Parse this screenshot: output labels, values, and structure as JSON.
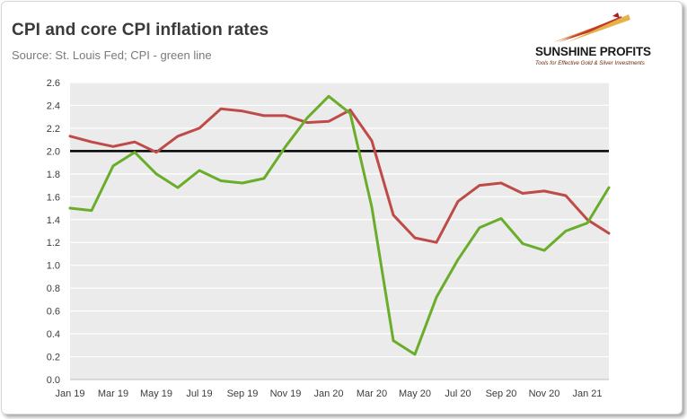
{
  "logo": {
    "name": "SUNSHINE PROFITS",
    "tagline": "Tools for Effective Gold & Silver Investments"
  },
  "chart_data": {
    "type": "line",
    "title": "CPI and core CPI inflation rates",
    "subtitle": "Source: St. Louis Fed; CPI - green line",
    "xlabel": "",
    "ylabel": "",
    "ylim": [
      0.0,
      2.6
    ],
    "yticks": [
      "0.0",
      "0.2",
      "0.4",
      "0.6",
      "0.8",
      "1.0",
      "1.2",
      "1.4",
      "1.6",
      "1.8",
      "2.0",
      "2.2",
      "2.4",
      "2.6"
    ],
    "xtick_labels": [
      "Jan 19",
      "Mar 19",
      "May 19",
      "Jul 19",
      "Sep 19",
      "Nov 19",
      "Jan 20",
      "Mar 20",
      "May 20",
      "Jul 20",
      "Sep 20",
      "Nov 20",
      "Jan 21"
    ],
    "grid": true,
    "legend": "none",
    "reference_line": {
      "value": 2.0,
      "color": "#000000"
    },
    "x": [
      "Jan 19",
      "Feb 19",
      "Mar 19",
      "Apr 19",
      "May 19",
      "Jun 19",
      "Jul 19",
      "Aug 19",
      "Sep 19",
      "Oct 19",
      "Nov 19",
      "Dec 19",
      "Jan 20",
      "Feb 20",
      "Mar 20",
      "Apr 20",
      "May 20",
      "Jun 20",
      "Jul 20",
      "Aug 20",
      "Sep 20",
      "Oct 20",
      "Nov 20",
      "Dec 20",
      "Jan 21",
      "Feb 21"
    ],
    "series": [
      {
        "color": "#be4b48",
        "values": [
          2.13,
          2.08,
          2.04,
          2.08,
          1.99,
          2.13,
          2.2,
          2.37,
          2.35,
          2.31,
          2.31,
          2.25,
          2.26,
          2.36,
          2.09,
          1.44,
          1.24,
          1.2,
          1.56,
          1.7,
          1.72,
          1.63,
          1.65,
          1.61,
          1.4,
          1.28
        ]
      },
      {
        "color": "#6aad2b",
        "values": [
          1.5,
          1.48,
          1.87,
          1.99,
          1.8,
          1.68,
          1.83,
          1.74,
          1.72,
          1.76,
          2.04,
          2.29,
          2.48,
          2.33,
          1.51,
          0.34,
          0.22,
          0.72,
          1.05,
          1.33,
          1.41,
          1.19,
          1.13,
          1.3,
          1.37,
          1.68
        ]
      }
    ]
  },
  "colors": {
    "plot_background": "#ebebeb",
    "grid": "#ffffff",
    "axis": "#bdbdbd"
  }
}
